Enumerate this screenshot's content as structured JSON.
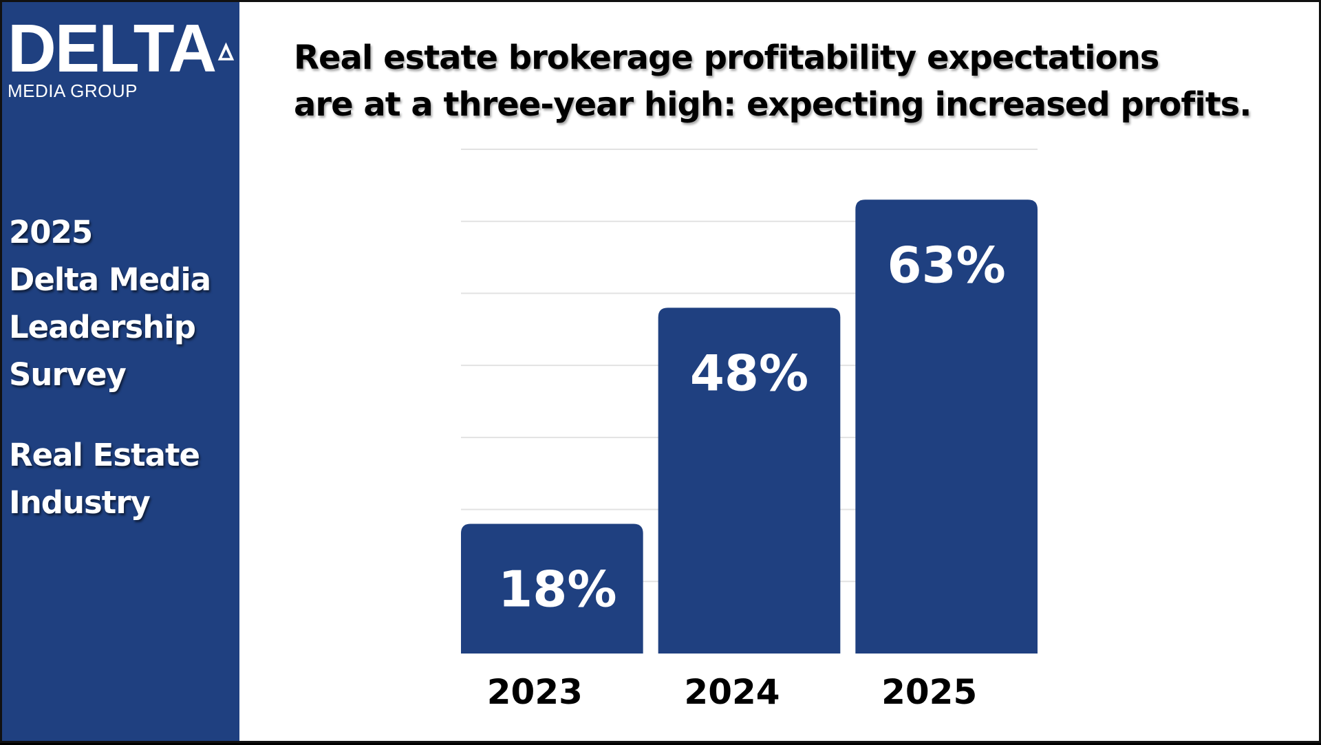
{
  "brand": {
    "logo_word": "DELTA",
    "logo_sub": "MEDIA GROUP",
    "color": "#1f4080"
  },
  "sidebar": {
    "lines_a": [
      "2025",
      "Delta Media",
      "Leadership",
      "Survey"
    ],
    "lines_b": [
      "Real Estate",
      "Industry"
    ]
  },
  "header": {
    "title_line1": "Real estate brokerage profitability expectations",
    "title_line2": "are at a three-year high: expecting increased profits."
  },
  "chart_data": {
    "type": "bar",
    "categories": [
      "2023",
      "2024",
      "2025"
    ],
    "values": [
      18,
      48,
      63
    ],
    "value_labels": [
      "18%",
      "48%",
      "63%"
    ],
    "ylim": [
      0,
      70
    ],
    "grid": true,
    "bar_color": "#1f4080"
  }
}
